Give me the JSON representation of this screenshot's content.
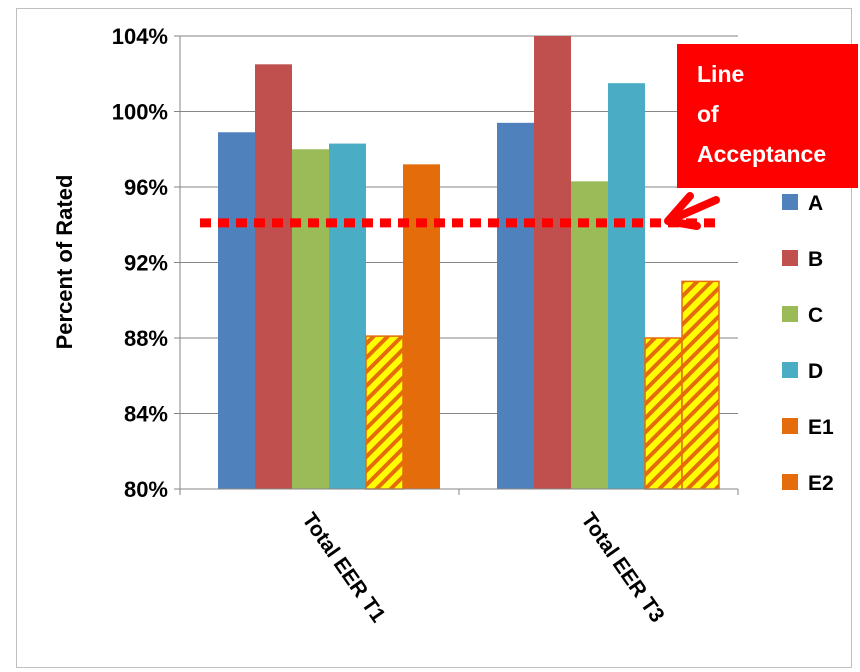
{
  "chart_data": {
    "type": "bar",
    "title": "",
    "xlabel": "",
    "ylabel": "Percent of Rated",
    "ylim": [
      80,
      104
    ],
    "y_ticks": [
      "80%",
      "84%",
      "88%",
      "92%",
      "96%",
      "100%",
      "104%"
    ],
    "y_tick_values": [
      80,
      84,
      88,
      92,
      96,
      100,
      104
    ],
    "categories": [
      "Total EER T1",
      "Total EER T3"
    ],
    "series": [
      {
        "name": "A",
        "values": [
          98.9,
          99.4
        ],
        "color": "#4f81bd",
        "pattern": "solid"
      },
      {
        "name": "B",
        "values": [
          102.5,
          104.0
        ],
        "color": "#c0504d",
        "pattern": "solid"
      },
      {
        "name": "C",
        "values": [
          98.0,
          96.3
        ],
        "color": "#9bbb59",
        "pattern": "solid"
      },
      {
        "name": "D",
        "values": [
          98.3,
          101.5
        ],
        "color": "#4bacc6",
        "pattern": "solid"
      },
      {
        "name": "E1",
        "values": [
          88.1,
          88.0
        ],
        "color": "#ffff00",
        "pattern": "hatched",
        "hatch_color": "#e46c0a"
      },
      {
        "name": "E2",
        "values": [
          97.2,
          91.0
        ],
        "color": "#e46c0a",
        "pattern": "mixed"
      }
    ],
    "grid": "horizontal",
    "legend_position": "right",
    "reference_line": {
      "value": 94.1,
      "color": "#ff0000",
      "style": "dotted"
    },
    "annotation": {
      "lines": [
        "Line",
        "of",
        "Acceptance"
      ],
      "box_color": "#ff0000",
      "text_color": "#ffffff",
      "arrow_color": "#ff0000"
    }
  }
}
